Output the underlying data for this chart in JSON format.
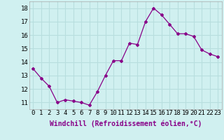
{
  "x": [
    0,
    1,
    2,
    3,
    4,
    5,
    6,
    7,
    8,
    9,
    10,
    11,
    12,
    13,
    14,
    15,
    16,
    17,
    18,
    19,
    20,
    21,
    22,
    23
  ],
  "y": [
    13.5,
    12.8,
    12.2,
    11.0,
    11.2,
    11.1,
    11.0,
    10.8,
    11.8,
    13.0,
    14.1,
    14.1,
    15.4,
    15.3,
    17.0,
    18.0,
    17.5,
    16.8,
    16.1,
    16.1,
    15.9,
    14.9,
    14.6,
    14.4
  ],
  "line_color": "#880088",
  "marker": "D",
  "marker_size": 2,
  "bg_color": "#d0f0f0",
  "grid_color": "#b8dede",
  "xlabel": "Windchill (Refroidissement éolien,°C)",
  "xlabel_fontsize": 7,
  "ylabel_ticks": [
    11,
    12,
    13,
    14,
    15,
    16,
    17,
    18
  ],
  "xlim": [
    -0.5,
    23.5
  ],
  "ylim": [
    10.5,
    18.5
  ],
  "xticks": [
    0,
    1,
    2,
    3,
    4,
    5,
    6,
    7,
    8,
    9,
    10,
    11,
    12,
    13,
    14,
    15,
    16,
    17,
    18,
    19,
    20,
    21,
    22,
    23
  ],
  "tick_fontsize": 6.5
}
